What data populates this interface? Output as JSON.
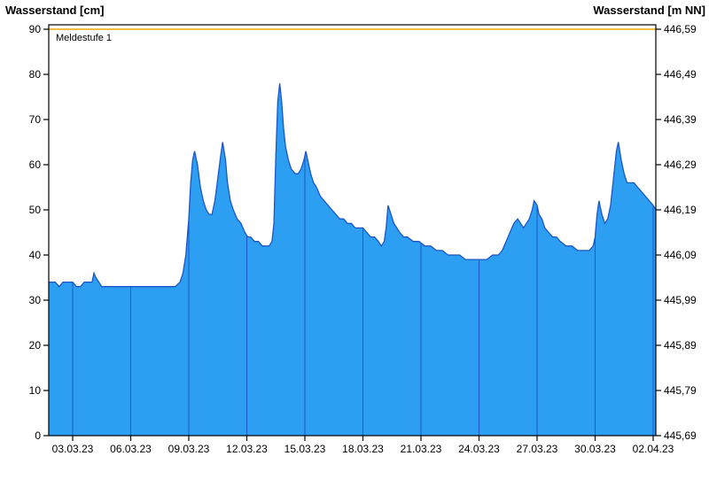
{
  "chart_data": {
    "type": "area",
    "title_left": "Wasserstand [cm]",
    "title_right": "Wasserstand [m NN]",
    "threshold": {
      "label": "Meldestufe 1",
      "value_cm": 90
    },
    "x_axis": {
      "tick_days": [
        0,
        3,
        6,
        9,
        12,
        15,
        18,
        21,
        24,
        27,
        30
      ],
      "tick_labels": [
        "03.03.23",
        "06.03.23",
        "09.03.23",
        "12.03.23",
        "15.03.23",
        "18.03.23",
        "21.03.23",
        "24.03.23",
        "27.03.23",
        "30.03.23",
        "02.04.23"
      ],
      "range_days": [
        -1.24,
        30.14
      ]
    },
    "y_left_axis": {
      "unit": "cm",
      "tick_values": [
        0,
        10,
        20,
        30,
        40,
        50,
        60,
        70,
        80,
        90
      ],
      "tick_labels": [
        "0",
        "10",
        "20",
        "30",
        "40",
        "50",
        "60",
        "70",
        "80",
        "90"
      ]
    },
    "y_right_axis": {
      "unit": "m NN",
      "tick_labels": [
        "445,69",
        "445,79",
        "445,89",
        "445,99",
        "446,09",
        "446,19",
        "446,29",
        "446,39",
        "446,49",
        "446,59"
      ]
    },
    "series": {
      "name": "Wasserstand",
      "x_days": [
        -1.24,
        -0.9,
        -0.7,
        -0.5,
        -0.2,
        0,
        0.2,
        0.4,
        0.6,
        0.8,
        1.0,
        1.1,
        1.2,
        1.35,
        1.5,
        1.8,
        2.2,
        2.6,
        3.0,
        3.5,
        4.0,
        4.5,
        5.0,
        5.3,
        5.55,
        5.7,
        5.85,
        6.0,
        6.1,
        6.2,
        6.3,
        6.45,
        6.6,
        6.75,
        6.9,
        7.05,
        7.2,
        7.35,
        7.5,
        7.65,
        7.75,
        7.9,
        8.0,
        8.15,
        8.3,
        8.5,
        8.7,
        8.9,
        9.05,
        9.2,
        9.4,
        9.6,
        9.8,
        10.0,
        10.15,
        10.3,
        10.4,
        10.5,
        10.6,
        10.7,
        10.8,
        10.9,
        11.0,
        11.15,
        11.3,
        11.5,
        11.65,
        11.8,
        11.95,
        12.05,
        12.15,
        12.3,
        12.45,
        12.6,
        12.8,
        13.0,
        13.2,
        13.4,
        13.6,
        13.8,
        14.0,
        14.2,
        14.4,
        14.6,
        14.8,
        15.0,
        15.2,
        15.4,
        15.6,
        15.8,
        15.95,
        16.1,
        16.2,
        16.3,
        16.45,
        16.6,
        16.75,
        16.9,
        17.1,
        17.3,
        17.6,
        17.9,
        18.2,
        18.5,
        18.8,
        19.1,
        19.4,
        19.7,
        20.0,
        20.3,
        20.6,
        21.0,
        21.4,
        21.7,
        22.0,
        22.2,
        22.4,
        22.6,
        22.8,
        23.0,
        23.15,
        23.3,
        23.45,
        23.6,
        23.75,
        23.85,
        24.0,
        24.1,
        24.25,
        24.4,
        24.6,
        24.8,
        25.0,
        25.2,
        25.5,
        25.8,
        26.1,
        26.4,
        26.7,
        26.9,
        27.0,
        27.1,
        27.2,
        27.35,
        27.5,
        27.65,
        27.8,
        27.95,
        28.1,
        28.2,
        28.35,
        28.5,
        28.65,
        28.8,
        29.0,
        29.2,
        29.4,
        29.6,
        29.8,
        30.0,
        30.14
      ],
      "y_cm": [
        34,
        34,
        33,
        34,
        34,
        34,
        33,
        33,
        34,
        34,
        34,
        36,
        35,
        34,
        33,
        33,
        33,
        33,
        33,
        33,
        33,
        33,
        33,
        33,
        34,
        36,
        40,
        48,
        56,
        61,
        63,
        60,
        55,
        52,
        50,
        49,
        49,
        52,
        57,
        62,
        65,
        61,
        56,
        52,
        50,
        48,
        47,
        45,
        44,
        44,
        43,
        43,
        42,
        42,
        42,
        43,
        47,
        62,
        74,
        78,
        74,
        68,
        64,
        61,
        59,
        58,
        58,
        59,
        61,
        63,
        61,
        58,
        56,
        55,
        53,
        52,
        51,
        50,
        49,
        48,
        48,
        47,
        47,
        46,
        46,
        46,
        45,
        44,
        44,
        43,
        42,
        43,
        46,
        51,
        49,
        47,
        46,
        45,
        44,
        44,
        43,
        43,
        42,
        42,
        41,
        41,
        40,
        40,
        40,
        39,
        39,
        39,
        39,
        40,
        40,
        41,
        43,
        45,
        47,
        48,
        47,
        46,
        47,
        48,
        50,
        52,
        51,
        49,
        48,
        46,
        45,
        44,
        44,
        43,
        42,
        42,
        41,
        41,
        41,
        42,
        44,
        49,
        52,
        49,
        47,
        48,
        51,
        57,
        63,
        65,
        61,
        58,
        56,
        56,
        56,
        55,
        54,
        53,
        52,
        51,
        50
      ]
    },
    "colors": {
      "fill": "#2D9FF2",
      "line": "#1B55C8",
      "grid": "#1B55C8",
      "threshold": "#F0AA00",
      "axis": "#000000",
      "background": "#FFFFFF"
    }
  }
}
